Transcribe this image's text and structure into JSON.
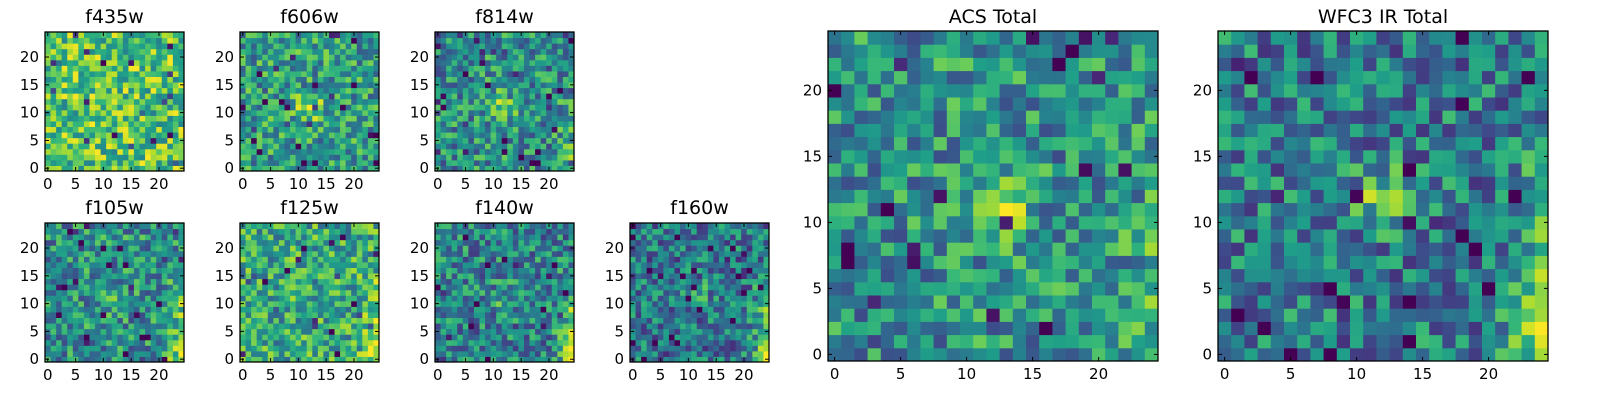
{
  "chart_data": [
    {
      "type": "heatmap",
      "title": "f435w",
      "size": 25,
      "xticks": [
        0,
        5,
        10,
        15,
        20
      ],
      "yticks": [
        0,
        5,
        10,
        15,
        20
      ],
      "bright_spot": {
        "x": 0,
        "y": 0,
        "level": 0.0
      },
      "right_edge_level": 0.0,
      "base_level": 0.72
    },
    {
      "type": "heatmap",
      "title": "f606w",
      "size": 25,
      "xticks": [
        0,
        5,
        10,
        15,
        20
      ],
      "yticks": [
        0,
        5,
        10,
        15,
        20
      ],
      "bright_spot": {
        "x": 12,
        "y": 11,
        "level": 0.35
      },
      "right_edge_level": 0.0,
      "base_level": 0.55
    },
    {
      "type": "heatmap",
      "title": "f814w",
      "size": 25,
      "xticks": [
        0,
        5,
        10,
        15,
        20
      ],
      "yticks": [
        0,
        5,
        10,
        15,
        20
      ],
      "bright_spot": {
        "x": 12,
        "y": 12,
        "level": 0.4
      },
      "right_edge_level": 0.2,
      "base_level": 0.5
    },
    {
      "type": "heatmap",
      "title": "f105w",
      "size": 25,
      "xticks": [
        0,
        5,
        10,
        15,
        20
      ],
      "yticks": [
        0,
        5,
        10,
        15,
        20
      ],
      "bright_spot": {
        "x": 12,
        "y": 11,
        "level": 0.2
      },
      "right_edge_level": 0.45,
      "base_level": 0.5
    },
    {
      "type": "heatmap",
      "title": "f125w",
      "size": 25,
      "xticks": [
        0,
        5,
        10,
        15,
        20
      ],
      "yticks": [
        0,
        5,
        10,
        15,
        20
      ],
      "bright_spot": {
        "x": 0,
        "y": 0,
        "level": 0.0
      },
      "right_edge_level": 0.45,
      "base_level": 0.6
    },
    {
      "type": "heatmap",
      "title": "f140w",
      "size": 25,
      "xticks": [
        0,
        5,
        10,
        15,
        20
      ],
      "yticks": [
        0,
        5,
        10,
        15,
        20
      ],
      "bright_spot": {
        "x": 12,
        "y": 11,
        "level": 0.15
      },
      "right_edge_level": 0.5,
      "base_level": 0.45
    },
    {
      "type": "heatmap",
      "title": "f160w",
      "size": 25,
      "xticks": [
        0,
        5,
        10,
        15,
        20
      ],
      "yticks": [
        0,
        5,
        10,
        15,
        20
      ],
      "bright_spot": {
        "x": 12,
        "y": 12,
        "level": 0.15
      },
      "right_edge_level": 0.55,
      "base_level": 0.4
    },
    {
      "type": "heatmap",
      "title": "ACS Total",
      "size": 25,
      "xticks": [
        0,
        5,
        10,
        15,
        20
      ],
      "yticks": [
        0,
        5,
        10,
        15,
        20
      ],
      "bright_spot": {
        "x": 12,
        "y": 11,
        "level": 0.45
      },
      "right_edge_level": 0.2,
      "base_level": 0.5
    },
    {
      "type": "heatmap",
      "title": "WFC3 IR Total",
      "size": 25,
      "xticks": [
        0,
        5,
        10,
        15,
        20
      ],
      "yticks": [
        0,
        5,
        10,
        15,
        20
      ],
      "bright_spot": {
        "x": 12,
        "y": 12,
        "level": 0.3
      },
      "right_edge_level": 0.55,
      "base_level": 0.42
    }
  ],
  "colors": {
    "colormap": [
      "#440154",
      "#482878",
      "#3e4989",
      "#31688e",
      "#26828e",
      "#1f9e89",
      "#35b779",
      "#6ece58",
      "#b5de2b",
      "#fde725"
    ]
  }
}
